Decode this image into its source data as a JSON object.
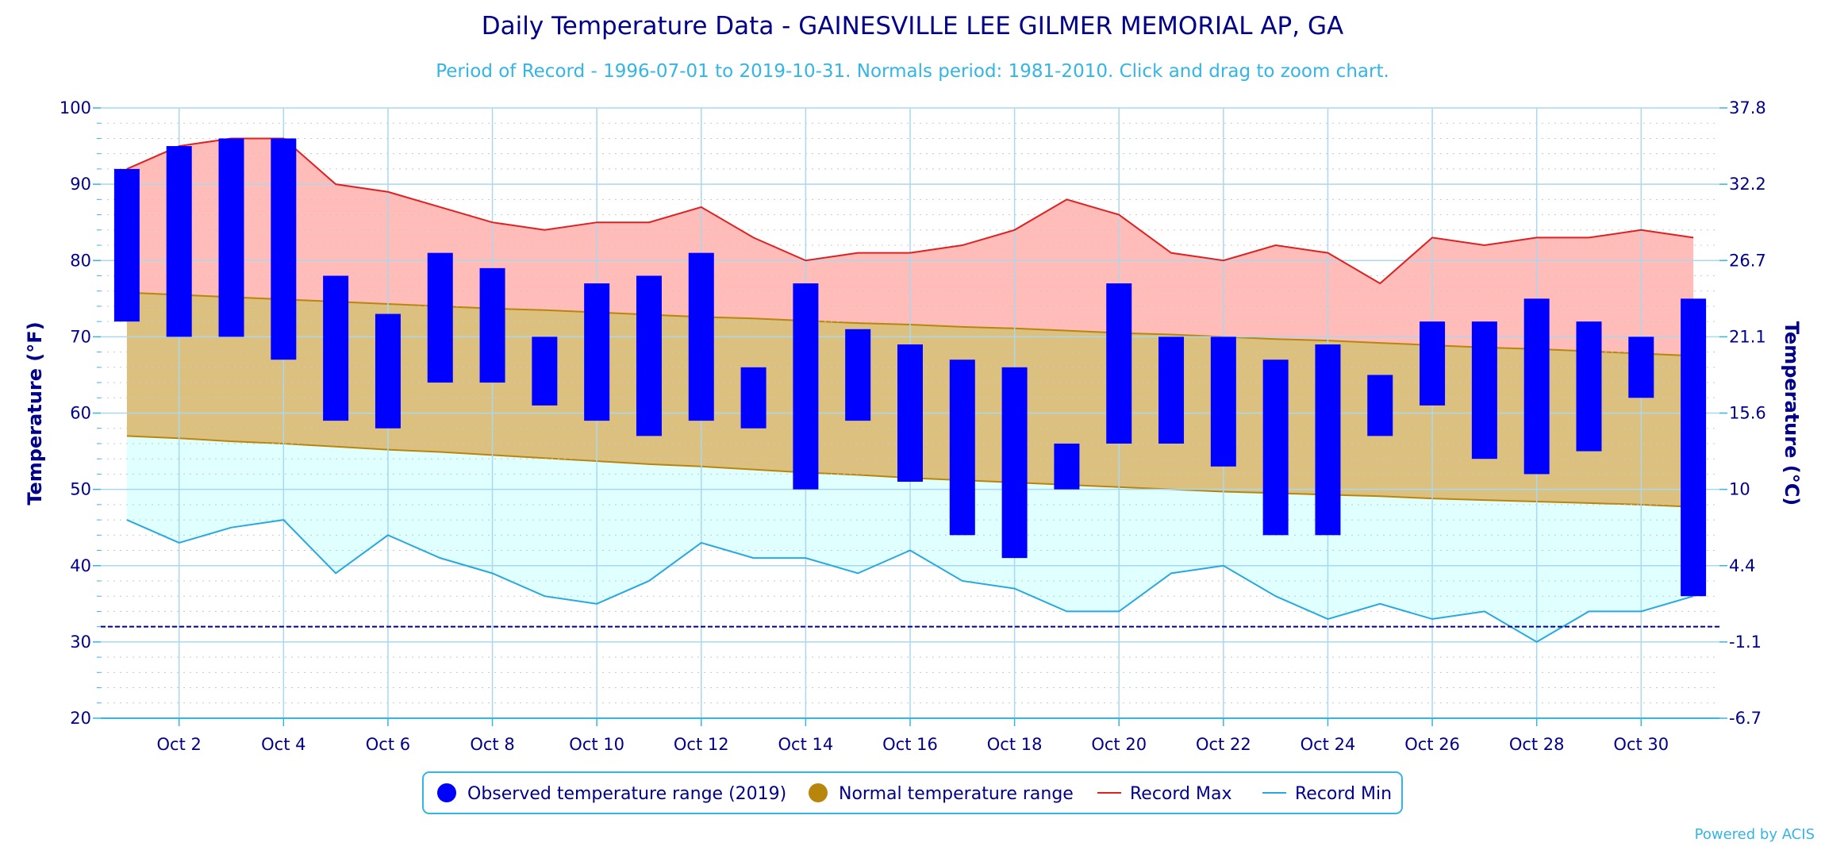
{
  "chart_data": {
    "type": "bar",
    "title": "Daily Temperature Data - GAINESVILLE LEE GILMER MEMORIAL AP, GA",
    "subtitle": "Period of Record - 1996-07-01 to 2019-10-31. Normals period: 1981-2010. Click and drag to zoom chart.",
    "ylabel": "Temperature (°F)",
    "ylabel_right": "Temperature (°C)",
    "ylim": [
      20,
      100
    ],
    "yticks": [
      20,
      30,
      40,
      50,
      60,
      70,
      80,
      90,
      100
    ],
    "yticks_right": [
      "-6.7",
      "-1.1",
      "4.4",
      "10",
      "15.6",
      "21.1",
      "26.7",
      "32.2",
      "37.8"
    ],
    "days": [
      1,
      2,
      3,
      4,
      5,
      6,
      7,
      8,
      9,
      10,
      11,
      12,
      13,
      14,
      15,
      16,
      17,
      18,
      19,
      20,
      21,
      22,
      23,
      24,
      25,
      26,
      27,
      28,
      29,
      30,
      31
    ],
    "xticks": [
      {
        "day": 2,
        "label": "Oct 2"
      },
      {
        "day": 4,
        "label": "Oct 4"
      },
      {
        "day": 6,
        "label": "Oct 6"
      },
      {
        "day": 8,
        "label": "Oct 8"
      },
      {
        "day": 10,
        "label": "Oct 10"
      },
      {
        "day": 12,
        "label": "Oct 12"
      },
      {
        "day": 14,
        "label": "Oct 14"
      },
      {
        "day": 16,
        "label": "Oct 16"
      },
      {
        "day": 18,
        "label": "Oct 18"
      },
      {
        "day": 20,
        "label": "Oct 20"
      },
      {
        "day": 22,
        "label": "Oct 22"
      },
      {
        "day": 24,
        "label": "Oct 24"
      },
      {
        "day": 26,
        "label": "Oct 26"
      },
      {
        "day": 28,
        "label": "Oct 28"
      },
      {
        "day": 30,
        "label": "Oct 30"
      }
    ],
    "reference_line": 32,
    "series": [
      {
        "name": "Observed temperature range (2019)",
        "type": "range-bar",
        "color": "#0000ff",
        "high": [
          92,
          95,
          96,
          96,
          78,
          73,
          81,
          79,
          70,
          77,
          78,
          81,
          66,
          77,
          71,
          69,
          67,
          66,
          56,
          77,
          70,
          70,
          67,
          69,
          65,
          72,
          72,
          75,
          72,
          70,
          75
        ],
        "low": [
          72,
          70,
          70,
          67,
          59,
          58,
          64,
          64,
          61,
          59,
          57,
          59,
          58,
          50,
          59,
          51,
          44,
          41,
          50,
          56,
          56,
          53,
          44,
          44,
          57,
          61,
          54,
          52,
          55,
          62,
          36
        ]
      },
      {
        "name": "Normal temperature range",
        "type": "area-range",
        "color": "#b8860b",
        "high": [
          75.8,
          75.5,
          75.2,
          74.9,
          74.6,
          74.3,
          74.0,
          73.7,
          73.5,
          73.2,
          72.9,
          72.6,
          72.4,
          72.1,
          71.8,
          71.6,
          71.3,
          71.1,
          70.8,
          70.5,
          70.3,
          70.0,
          69.7,
          69.5,
          69.2,
          68.9,
          68.6,
          68.4,
          68.1,
          67.8,
          67.5
        ],
        "low": [
          57.0,
          56.7,
          56.3,
          56.0,
          55.6,
          55.2,
          54.9,
          54.5,
          54.1,
          53.7,
          53.3,
          53.0,
          52.6,
          52.2,
          51.9,
          51.5,
          51.2,
          50.9,
          50.6,
          50.3,
          50.0,
          49.7,
          49.5,
          49.3,
          49.1,
          48.8,
          48.6,
          48.4,
          48.2,
          48.0,
          47.7
        ]
      },
      {
        "name": "Record Max",
        "type": "line",
        "color": "#e02020",
        "values": [
          92,
          95,
          96,
          96,
          90,
          89,
          87,
          85,
          84,
          85,
          85,
          87,
          83,
          80,
          81,
          81,
          82,
          84,
          88,
          86,
          81,
          80,
          82,
          81,
          77,
          83,
          82,
          83,
          83,
          84,
          83
        ]
      },
      {
        "name": "Record Min",
        "type": "line",
        "color": "#29a8e0",
        "values": [
          46,
          43,
          45,
          46,
          39,
          44,
          41,
          39,
          36,
          35,
          38,
          43,
          41,
          41,
          39,
          42,
          38,
          37,
          34,
          34,
          39,
          40,
          36,
          33,
          35,
          33,
          34,
          30,
          34,
          34,
          36
        ]
      }
    ],
    "colors": {
      "record_fill": "#ffbcb8",
      "normal_fill": "#dcc080",
      "min_fill": "#e0ffff",
      "grid": "#a9d8ef",
      "reference": "#00008b"
    }
  },
  "credit": "Powered by ACIS"
}
